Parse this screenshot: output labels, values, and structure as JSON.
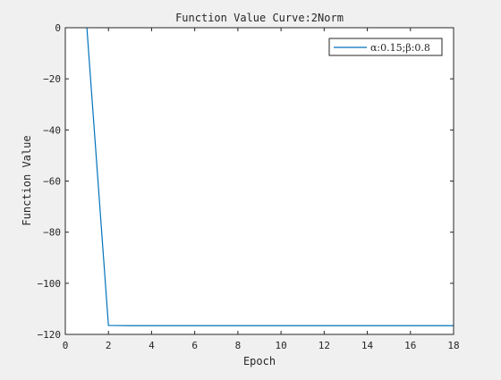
{
  "chart_data": {
    "type": "line",
    "title": "Function Value Curve:2Norm",
    "xlabel": "Epoch",
    "ylabel": "Function Value",
    "xlim": [
      0,
      18
    ],
    "ylim": [
      -120,
      0
    ],
    "xticks": [
      0,
      2,
      4,
      6,
      8,
      10,
      12,
      14,
      16,
      18
    ],
    "yticks": [
      0,
      -20,
      -40,
      -60,
      -80,
      -100,
      -120
    ],
    "grid": false,
    "legend_position": "top-right",
    "series": [
      {
        "name": "α:0.15;β:0.8",
        "color": "#0072bd",
        "x": [
          1,
          2,
          3,
          4,
          5,
          6,
          7,
          8,
          9,
          10,
          11,
          12,
          13,
          14,
          15,
          16,
          17,
          18
        ],
        "values": [
          0,
          -116.5,
          -116.6,
          -116.6,
          -116.6,
          -116.6,
          -116.6,
          -116.6,
          -116.6,
          -116.6,
          -116.6,
          -116.6,
          -116.6,
          -116.6,
          -116.6,
          -116.6,
          -116.6,
          -116.6
        ]
      }
    ]
  }
}
